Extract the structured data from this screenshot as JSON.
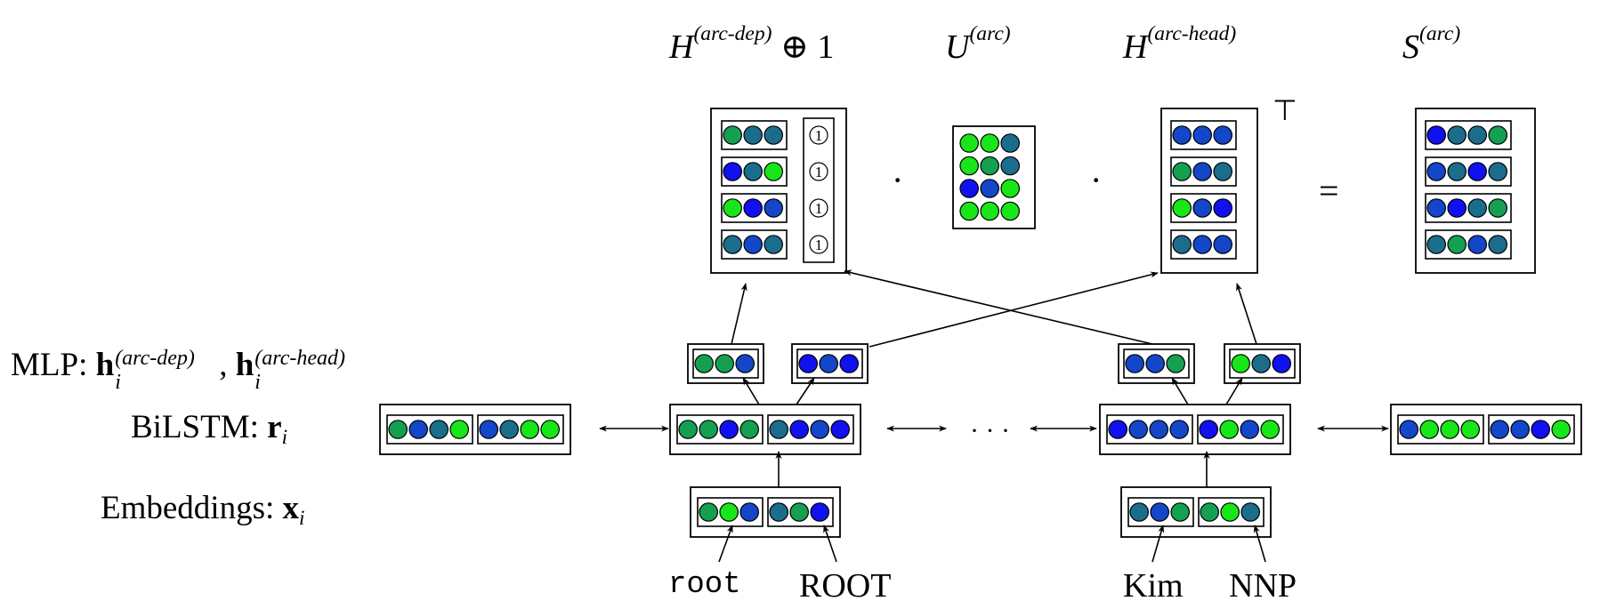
{
  "colors": {
    "bright_green": "#19e619",
    "green": "#14a050",
    "teal": "#1b6d8c",
    "blue": "#1346c8",
    "bright_blue": "#1010f0",
    "stroke": "#000000"
  },
  "row_labels": {
    "mlp": {
      "prefix": "MLP: ",
      "h": "h",
      "sub": "i",
      "sup1": "(arc-dep)",
      "sep": ", ",
      "sup2": "(arc-head)"
    },
    "bilstm": {
      "prefix": "BiLSTM: ",
      "var": "r",
      "sub": "i"
    },
    "embeddings": {
      "prefix": "Embeddings: ",
      "var": "x",
      "sub": "i"
    }
  },
  "tokens": {
    "root_word": "root",
    "root_tag": "ROOT",
    "kim_word": "Kim",
    "kim_tag": "NNP"
  },
  "ellipsis": "· · ·",
  "matrices": {
    "h_dep": {
      "base": "H",
      "sup": "(arc-dep)",
      "suffix": " ⊕ 1",
      "one_symbol": "1"
    },
    "u": {
      "base": "U",
      "sup": "(arc)"
    },
    "h_head": {
      "base": "H",
      "sup": "(arc-head)",
      "transpose": "⊤"
    },
    "s": {
      "base": "S",
      "sup": "(arc)"
    }
  },
  "operators": {
    "dot1": "·",
    "dot2": "·",
    "equals": "="
  },
  "vectors": {
    "emb_root": [
      [
        "g",
        "gr",
        "b"
      ],
      [
        "t",
        "g",
        "bb"
      ]
    ],
    "emb_kim": [
      [
        "t",
        "b",
        "g"
      ],
      [
        "g",
        "gr",
        "t"
      ]
    ],
    "bilstm_far_left": [
      [
        "g",
        "b",
        "t",
        "gr"
      ],
      [
        "b",
        "t",
        "gr",
        "gr"
      ]
    ],
    "bilstm_root": [
      [
        "g",
        "g",
        "bb",
        "g"
      ],
      [
        "t",
        "bb",
        "b",
        "bb"
      ]
    ],
    "bilstm_kim": [
      [
        "bb",
        "b",
        "b",
        "b"
      ],
      [
        "bb",
        "gr",
        "b",
        "gr"
      ]
    ],
    "bilstm_far_right": [
      [
        "b",
        "gr",
        "gr",
        "gr"
      ],
      [
        "b",
        "b",
        "bb",
        "gr"
      ]
    ],
    "mlp_root_dep": [
      "g",
      "g",
      "b"
    ],
    "mlp_root_head": [
      "bb",
      "b",
      "bb"
    ],
    "mlp_kim_dep": [
      "b",
      "b",
      "g"
    ],
    "mlp_kim_head": [
      "gr",
      "t",
      "bb"
    ],
    "h_dep_rows": [
      [
        "g",
        "t",
        "t"
      ],
      [
        "bb",
        "t",
        "gr"
      ],
      [
        "gr",
        "bb",
        "b"
      ],
      [
        "t",
        "b",
        "t"
      ]
    ],
    "u_rows": [
      [
        "gr",
        "gr",
        "t"
      ],
      [
        "gr",
        "g",
        "t"
      ],
      [
        "bb",
        "b",
        "gr"
      ],
      [
        "gr",
        "gr",
        "gr"
      ]
    ],
    "h_head_rows": [
      [
        "b",
        "b",
        "b"
      ],
      [
        "g",
        "b",
        "t"
      ],
      [
        "gr",
        "b",
        "bb"
      ],
      [
        "t",
        "b",
        "b"
      ]
    ],
    "s_rows": [
      [
        "bb",
        "t",
        "t",
        "g"
      ],
      [
        "b",
        "t",
        "bb",
        "t"
      ],
      [
        "b",
        "bb",
        "t",
        "g"
      ],
      [
        "t",
        "g",
        "b",
        "t"
      ]
    ]
  }
}
